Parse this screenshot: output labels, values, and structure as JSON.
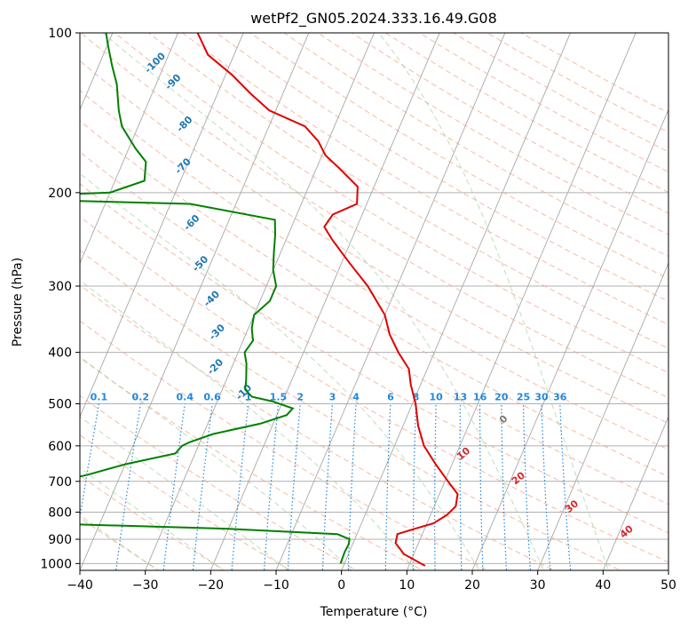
{
  "chart_data": {
    "type": "skew-t",
    "title": "wetPf2_GN05.2024.333.16.49.G08",
    "xlabel": "Temperature (°C)",
    "ylabel": "Pressure (hPa)",
    "xlim": [
      -40,
      50
    ],
    "ylim": [
      1030,
      100
    ],
    "y_scale": "log",
    "grid": true,
    "x_ticks": [
      "−40",
      "−30",
      "−20",
      "−10",
      "0",
      "10",
      "20",
      "30",
      "40",
      "50"
    ],
    "y_ticks": [
      "100",
      "200",
      "300",
      "400",
      "500",
      "600",
      "700",
      "800",
      "900",
      "1000"
    ],
    "series": [
      {
        "color": "#e00000",
        "points": [
          [
            1010,
            12.5
          ],
          [
            960,
            8.5
          ],
          [
            915,
            6.5
          ],
          [
            880,
            6.2
          ],
          [
            860,
            8.5
          ],
          [
            840,
            11.0
          ],
          [
            810,
            12.5
          ],
          [
            780,
            13.3
          ],
          [
            740,
            12.8
          ],
          [
            700,
            10.5
          ],
          [
            650,
            7.5
          ],
          [
            600,
            4.5
          ],
          [
            550,
            2.3
          ],
          [
            500,
            0.5
          ],
          [
            460,
            -1.5
          ],
          [
            430,
            -2.8
          ],
          [
            400,
            -5.5
          ],
          [
            370,
            -8.0
          ],
          [
            340,
            -10.0
          ],
          [
            300,
            -14.5
          ],
          [
            270,
            -19.0
          ],
          [
            245,
            -23.0
          ],
          [
            232,
            -25.0
          ],
          [
            220,
            -24.5
          ],
          [
            210,
            -21.5
          ],
          [
            195,
            -22.5
          ],
          [
            180,
            -26.5
          ],
          [
            170,
            -29.5
          ],
          [
            160,
            -31.5
          ],
          [
            150,
            -34.5
          ],
          [
            140,
            -41.0
          ],
          [
            130,
            -45.0
          ],
          [
            120,
            -49.0
          ],
          [
            110,
            -54.0
          ],
          [
            100,
            -57.0
          ]
        ]
      },
      {
        "color": "#008000",
        "points": [
          [
            1000,
            -0.6
          ],
          [
            950,
            -0.7
          ],
          [
            920,
            -0.6
          ],
          [
            900,
            -0.8
          ],
          [
            880,
            -3.0
          ],
          [
            860,
            -20
          ],
          [
            840,
            -49
          ],
          [
            825,
            -70
          ],
          [
            815,
            -73
          ],
          [
            800,
            -80
          ],
          [
            760,
            -75
          ],
          [
            730,
            -65
          ],
          [
            720,
            -55
          ],
          [
            700,
            -49
          ],
          [
            680,
            -45
          ],
          [
            650,
            -40
          ],
          [
            620,
            -33
          ],
          [
            600,
            -32.5
          ],
          [
            590,
            -31.5
          ],
          [
            570,
            -28.5
          ],
          [
            545,
            -22.0
          ],
          [
            525,
            -18.5
          ],
          [
            510,
            -18.0
          ],
          [
            495,
            -21.5
          ],
          [
            485,
            -25.0
          ],
          [
            470,
            -26.5
          ],
          [
            450,
            -27.0
          ],
          [
            420,
            -28.0
          ],
          [
            400,
            -29.0
          ],
          [
            380,
            -28.5
          ],
          [
            360,
            -29.5
          ],
          [
            340,
            -30.0
          ],
          [
            320,
            -28.5
          ],
          [
            300,
            -28.5
          ],
          [
            280,
            -30.0
          ],
          [
            260,
            -31.0
          ],
          [
            240,
            -32.0
          ],
          [
            225,
            -33.0
          ],
          [
            210,
            -47.0
          ],
          [
            206,
            -73.0
          ],
          [
            203,
            -73.0
          ],
          [
            200,
            -60.0
          ],
          [
            190,
            -55.5
          ],
          [
            175,
            -56.5
          ],
          [
            165,
            -59.0
          ],
          [
            150,
            -62.5
          ],
          [
            140,
            -64.0
          ],
          [
            125,
            -66.0
          ],
          [
            115,
            -68.0
          ],
          [
            105,
            -70.0
          ],
          [
            100,
            -71.0
          ]
        ]
      }
    ],
    "mixing_ratio_labels": [
      "0.1",
      "0.2",
      "0.4",
      "0.6",
      "1",
      "1.5",
      "2",
      "3",
      "4",
      "6",
      "8",
      "10",
      "13",
      "16",
      "20",
      "25",
      "30",
      "36"
    ],
    "dry_adiabat_labels": [
      "10",
      "20",
      "30",
      "40"
    ],
    "moist_adiabat_labels": [
      "-100",
      "-90",
      "-80",
      "-70",
      "-60",
      "-50",
      "-40",
      "-30",
      "-20",
      "-10",
      "0"
    ]
  }
}
